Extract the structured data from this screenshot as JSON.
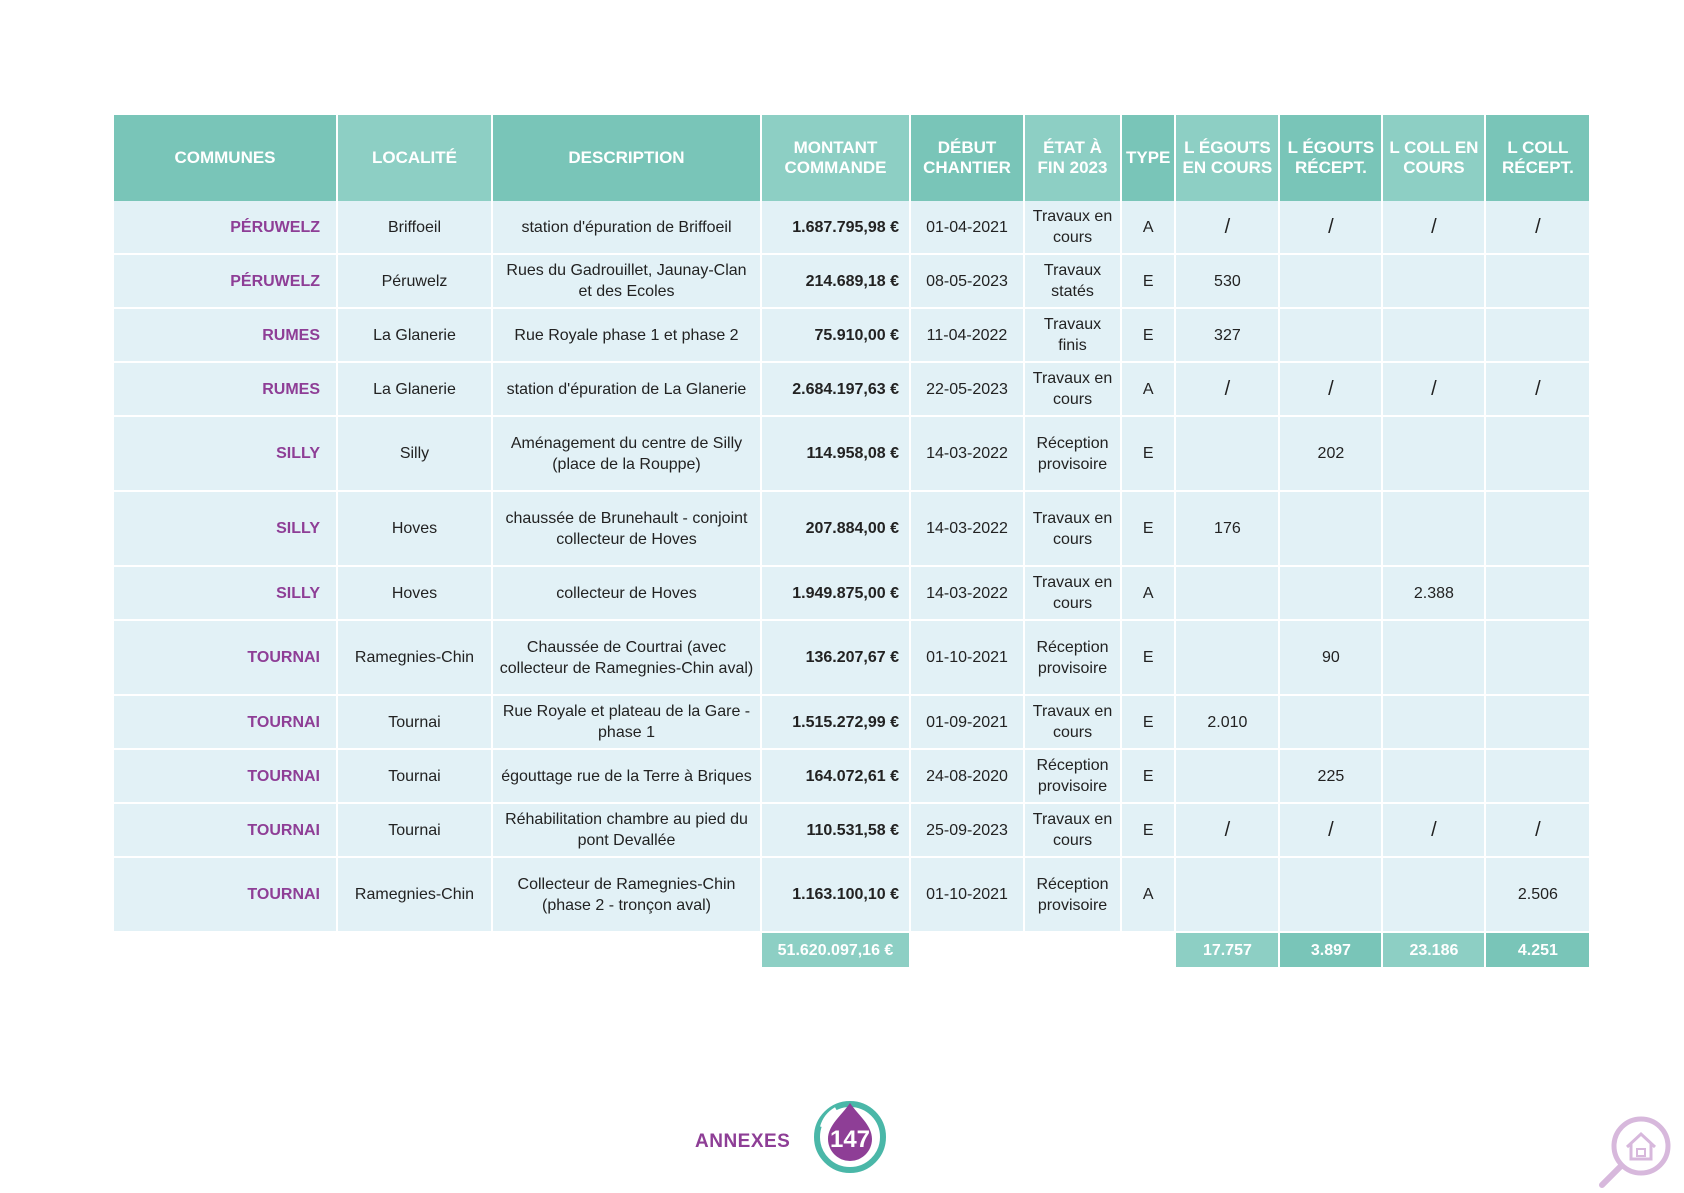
{
  "table": {
    "headers": [
      "COMMUNES",
      "LOCALITÉ",
      "DESCRIPTION",
      "MONTANT COMMANDE",
      "DÉBUT CHANTIER",
      "ÉTAT À FIN 2023",
      "TYPE",
      "L ÉGOUTS EN COURS",
      "L ÉGOUTS RÉCEPT.",
      "L COLL EN COURS",
      "L COLL RÉCEPT."
    ],
    "rows": [
      {
        "commune": "PÉRUWELZ",
        "localite": "Briffoeil",
        "description": "station d'épuration de Briffoeil",
        "montant": "1.687.795,98 €",
        "debut": "01-04-2021",
        "etat": "Travaux en cours",
        "type": "A",
        "egouts_cours": "/",
        "egouts_recept": "/",
        "coll_cours": "/",
        "coll_recept": "/"
      },
      {
        "commune": "PÉRUWELZ",
        "localite": "Péruwelz",
        "description": "Rues du Gadrouillet, Jaunay-Clan et des Ecoles",
        "montant": "214.689,18 €",
        "debut": "08-05-2023",
        "etat": "Travaux statés",
        "type": "E",
        "egouts_cours": "530",
        "egouts_recept": "",
        "coll_cours": "",
        "coll_recept": ""
      },
      {
        "commune": "RUMES",
        "localite": "La Glanerie",
        "description": "Rue Royale phase 1 et phase 2",
        "montant": "75.910,00 €",
        "debut": "11-04-2022",
        "etat": "Travaux finis",
        "type": "E",
        "egouts_cours": "327",
        "egouts_recept": "",
        "coll_cours": "",
        "coll_recept": ""
      },
      {
        "commune": "RUMES",
        "localite": "La Glanerie",
        "description": "station d'épuration de La Glanerie",
        "montant": "2.684.197,63 €",
        "debut": "22-05-2023",
        "etat": "Travaux en cours",
        "type": "A",
        "egouts_cours": "/",
        "egouts_recept": "/",
        "coll_cours": "/",
        "coll_recept": "/"
      },
      {
        "commune": "SILLY",
        "localite": "Silly",
        "description": "Aménagement du centre de Silly (place de la Rouppe)",
        "montant": "114.958,08 €",
        "debut": "14-03-2022",
        "etat": "Réception provisoire",
        "type": "E",
        "egouts_cours": "",
        "egouts_recept": "202",
        "coll_cours": "",
        "coll_recept": ""
      },
      {
        "commune": "SILLY",
        "localite": "Hoves",
        "description": "chaussée de Brunehault - conjoint collecteur de Hoves",
        "montant": "207.884,00 €",
        "debut": "14-03-2022",
        "etat": "Travaux en cours",
        "type": "E",
        "egouts_cours": "176",
        "egouts_recept": "",
        "coll_cours": "",
        "coll_recept": ""
      },
      {
        "commune": "SILLY",
        "localite": "Hoves",
        "description": "collecteur de Hoves",
        "montant": "1.949.875,00 €",
        "debut": "14-03-2022",
        "etat": "Travaux en cours",
        "type": "A",
        "egouts_cours": "",
        "egouts_recept": "",
        "coll_cours": "2.388",
        "coll_recept": ""
      },
      {
        "commune": "TOURNAI",
        "localite": "Ramegnies-Chin",
        "description": "Chaussée de Courtrai (avec collecteur de Ramegnies-Chin aval)",
        "montant": "136.207,67 €",
        "debut": "01-10-2021",
        "etat": "Réception provisoire",
        "type": "E",
        "egouts_cours": "",
        "egouts_recept": "90",
        "coll_cours": "",
        "coll_recept": ""
      },
      {
        "commune": "TOURNAI",
        "localite": "Tournai",
        "description": "Rue Royale et plateau de la Gare - phase 1",
        "montant": "1.515.272,99 €",
        "debut": "01-09-2021",
        "etat": "Travaux en cours",
        "type": "E",
        "egouts_cours": "2.010",
        "egouts_recept": "",
        "coll_cours": "",
        "coll_recept": ""
      },
      {
        "commune": "TOURNAI",
        "localite": "Tournai",
        "description": "égouttage rue de la Terre à Briques",
        "montant": "164.072,61 €",
        "debut": "24-08-2020",
        "etat": "Réception provisoire",
        "type": "E",
        "egouts_cours": "",
        "egouts_recept": "225",
        "coll_cours": "",
        "coll_recept": ""
      },
      {
        "commune": "TOURNAI",
        "localite": "Tournai",
        "description": "Réhabilitation chambre au pied du pont Devallée",
        "montant": "110.531,58 €",
        "debut": "25-09-2023",
        "etat": "Travaux en cours",
        "type": "E",
        "egouts_cours": "/",
        "egouts_recept": "/",
        "coll_cours": "/",
        "coll_recept": "/"
      },
      {
        "commune": "TOURNAI",
        "localite": "Ramegnies-Chin",
        "description": "Collecteur de Ramegnies-Chin (phase 2 - tronçon aval)",
        "montant": "1.163.100,10 €",
        "debut": "01-10-2021",
        "etat": "Réception provisoire",
        "type": "A",
        "egouts_cours": "",
        "egouts_recept": "",
        "coll_cours": "",
        "coll_recept": "2.506"
      }
    ],
    "totals": {
      "montant": "51.620.097,16 €",
      "egouts_cours": "17.757",
      "egouts_recept": "3.897",
      "coll_cours": "23.186",
      "coll_recept": "4.251"
    }
  },
  "footer": {
    "label": "ANNEXES",
    "page_number": "147"
  },
  "icons": {
    "badge": "water-drop-badge-icon",
    "corner": "magnifier-house-icon"
  },
  "colors": {
    "header_dark": "#79c5b8",
    "header_light": "#8dcfc4",
    "row_bg": "#e2f1f6",
    "commune_text": "#8e3e96"
  }
}
